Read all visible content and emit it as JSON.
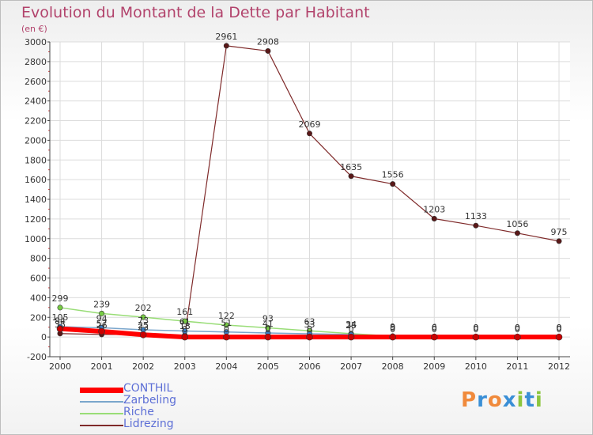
{
  "chart_data": {
    "type": "line",
    "title": "Evolution du Montant de la Dette par Habitant",
    "ylabel": "(en €)",
    "xlabel": "",
    "ylim": [
      -200,
      3000
    ],
    "y_ticks": [
      -200,
      0,
      200,
      400,
      600,
      800,
      1000,
      1200,
      1400,
      1600,
      1800,
      2000,
      2200,
      2400,
      2600,
      2800,
      3000
    ],
    "x": [
      2000,
      2001,
      2002,
      2003,
      2004,
      2005,
      2006,
      2007,
      2008,
      2009,
      2010,
      2011,
      2012
    ],
    "grid": true,
    "legend_position": "bottom-left",
    "series": [
      {
        "name": "CONTHIL",
        "color": "#ff0000",
        "marker": "#cc0000",
        "values": [
          84,
          57,
          23,
          0,
          0,
          0,
          0,
          0,
          0,
          0,
          0,
          0,
          0
        ]
      },
      {
        "name": "Zarbeling",
        "color": "#7aa6cc",
        "marker": "#3d7fc4",
        "values": [
          105,
          94,
          73,
          61,
          51,
          41,
          33,
          25,
          0,
          0,
          0,
          0,
          0
        ]
      },
      {
        "name": "Riche",
        "color": "#99dd77",
        "marker": "#77cc44",
        "values": [
          299,
          239,
          202,
          161,
          122,
          93,
          63,
          34,
          9,
          6,
          0,
          0,
          0
        ]
      },
      {
        "name": "Lidrezing",
        "color": "#7f2a2a",
        "marker": "#5a1818",
        "values": [
          35,
          26,
          25,
          18,
          2961,
          2908,
          2069,
          1635,
          1556,
          1203,
          1133,
          1056,
          975
        ]
      }
    ]
  },
  "logo": {
    "letters": [
      "P",
      "r",
      "o",
      "x",
      "i",
      "t",
      "i"
    ],
    "colors": [
      "#f08a3c",
      "#3a8fd6",
      "#f08a3c",
      "#3a8fd6",
      "#8cc63f",
      "#3a8fd6",
      "#8cc63f"
    ]
  }
}
